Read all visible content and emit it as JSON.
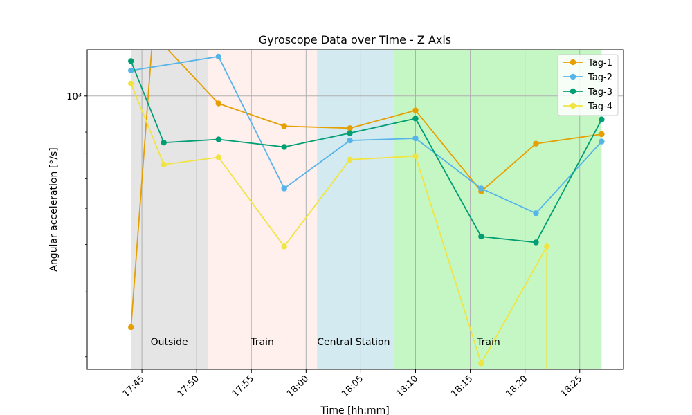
{
  "chart_data": {
    "type": "line",
    "title": "Gyroscope Data over Time - Z Axis",
    "xlabel": "Time [hh:mm]",
    "ylabel": "Angular acceleration [°/s]",
    "y_scale": "log",
    "ylim": [
      185,
      1330
    ],
    "xlim": [
      "17:40:00",
      "18:29:00"
    ],
    "x_ticks": [
      "17:45",
      "17:50",
      "17:55",
      "18:00",
      "18:05",
      "18:10",
      "18:15",
      "18:20",
      "18:25"
    ],
    "y_tick_label": "10³",
    "y_tick_value": 1000,
    "grid": true,
    "legend_position": "top-right",
    "regions": [
      {
        "label": "Outside",
        "start": "17:44:00",
        "end": "17:51:00",
        "color": "#e5e5e5"
      },
      {
        "label": "Train",
        "start": "17:51:00",
        "end": "18:01:00",
        "color": "#fff0ee"
      },
      {
        "label": "Central Station",
        "start": "18:01:00",
        "end": "18:08:00",
        "color": "#d3eaf0"
      },
      {
        "label": "Train",
        "start": "18:08:00",
        "end": "18:27:00",
        "color": "#c5f7c5"
      }
    ],
    "series": [
      {
        "name": "Tag-1",
        "color": "#e69f00",
        "x": [
          "17:44:00",
          "17:46:00",
          "17:52:00",
          "17:58:00",
          "18:04:00",
          "18:10:00",
          "18:16:00",
          "18:21:00",
          "18:27:00"
        ],
        "y": [
          240,
          1470,
          955,
          830,
          820,
          915,
          555,
          745,
          790
        ]
      },
      {
        "name": "Tag-2",
        "color": "#56b4e9",
        "x": [
          "17:44:00",
          "17:52:00",
          "17:58:00",
          "18:04:00",
          "18:10:00",
          "18:16:00",
          "18:21:00",
          "18:27:00"
        ],
        "y": [
          1170,
          1275,
          565,
          760,
          770,
          565,
          485,
          755
        ]
      },
      {
        "name": "Tag-3",
        "color": "#009e73",
        "x": [
          "17:44:00",
          "17:47:00",
          "17:52:00",
          "17:58:00",
          "18:04:00",
          "18:10:00",
          "18:16:00",
          "18:21:00",
          "18:27:00"
        ],
        "y": [
          1240,
          750,
          765,
          730,
          795,
          870,
          420,
          405,
          865
        ]
      },
      {
        "name": "Tag-4",
        "color": "#f0e442",
        "x": [
          "17:44:00",
          "17:47:00",
          "17:52:00",
          "17:58:00",
          "18:04:00",
          "18:10:00",
          "18:16:00",
          "18:22:00",
          "18:22:00"
        ],
        "y": [
          1080,
          655,
          685,
          395,
          675,
          690,
          192,
          395,
          170
        ]
      }
    ]
  }
}
